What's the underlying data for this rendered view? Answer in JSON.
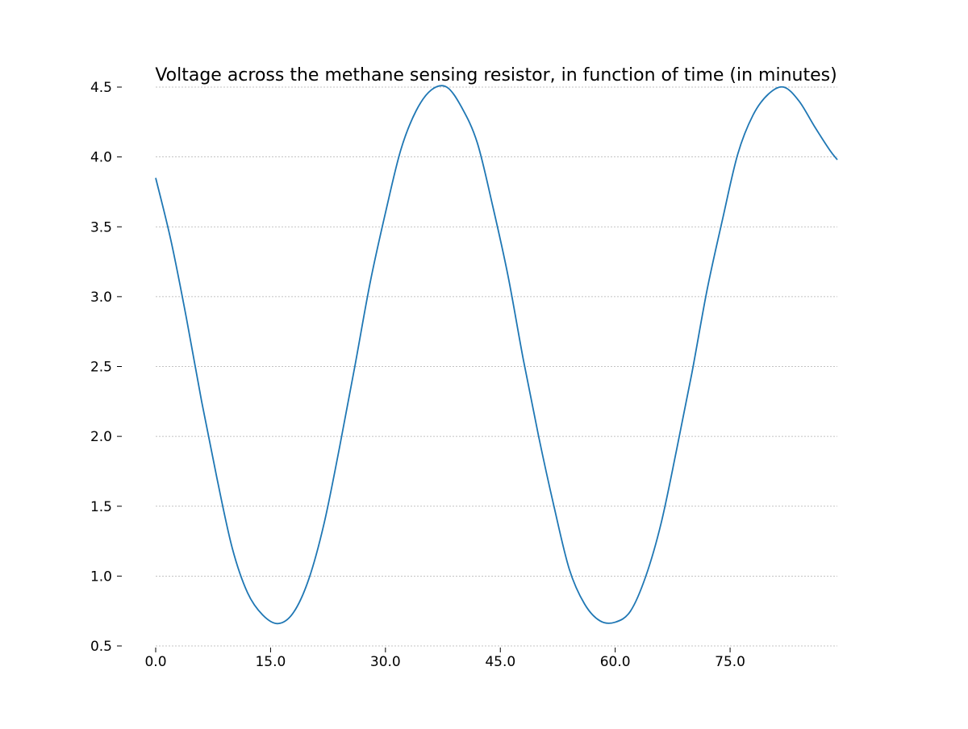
{
  "chart_data": {
    "type": "line",
    "title": "Voltage across the methane sensing resistor, in function of time (in minutes)",
    "xlabel": "",
    "ylabel": "",
    "xlim": [
      0,
      89
    ],
    "ylim": [
      0.5,
      4.5
    ],
    "x_ticks": [
      0,
      15,
      30,
      45,
      60,
      75
    ],
    "x_tick_labels": [
      "0.0",
      "15.0",
      "30.0",
      "45.0",
      "60.0",
      "75.0"
    ],
    "y_ticks": [
      0.5,
      1.0,
      1.5,
      2.0,
      2.5,
      3.0,
      3.5,
      4.0,
      4.5
    ],
    "y_tick_labels": [
      "0.5",
      "1.0",
      "1.5",
      "2.0",
      "2.5",
      "3.0",
      "3.5",
      "4.0",
      "4.5"
    ],
    "grid": "horizontal, dashed",
    "legend": "none",
    "colors": {
      "line": "#1f77b4",
      "grid": "#b0b0b0",
      "text": "#000000"
    },
    "series": [
      {
        "x": [
          0,
          2,
          4,
          6,
          8,
          10,
          12,
          14,
          16,
          18,
          20,
          22,
          24,
          26,
          28,
          30,
          32,
          34,
          36,
          38,
          40,
          42,
          44,
          46,
          48,
          50,
          52,
          54,
          56,
          58,
          60,
          62,
          64,
          66,
          68,
          70,
          72,
          74,
          76,
          78,
          80,
          82,
          84,
          86,
          88,
          89
        ],
        "values": [
          3.85,
          3.4,
          2.85,
          2.25,
          1.7,
          1.2,
          0.88,
          0.72,
          0.66,
          0.74,
          0.98,
          1.38,
          1.92,
          2.5,
          3.1,
          3.6,
          4.05,
          4.33,
          4.48,
          4.5,
          4.35,
          4.1,
          3.65,
          3.15,
          2.55,
          2.0,
          1.5,
          1.05,
          0.8,
          0.68,
          0.67,
          0.75,
          1.0,
          1.38,
          1.9,
          2.45,
          3.05,
          3.55,
          4.02,
          4.3,
          4.45,
          4.5,
          4.4,
          4.22,
          4.05,
          3.98
        ]
      }
    ]
  }
}
